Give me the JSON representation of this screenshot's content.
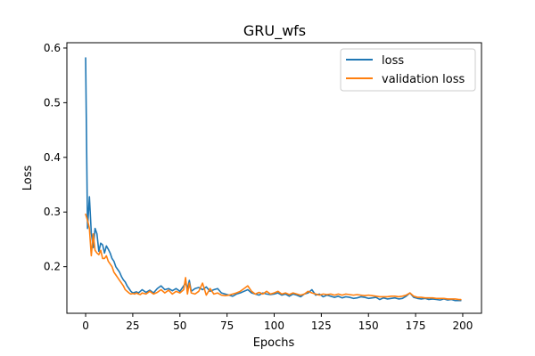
{
  "chart_data": {
    "type": "line",
    "title": "GRU_wfs",
    "xlabel": "Epochs",
    "ylabel": "Loss",
    "xlim": [
      -9.95,
      209.95
    ],
    "ylim": [
      0.1148,
      0.6097
    ],
    "xticks": [
      0,
      25,
      50,
      75,
      100,
      125,
      150,
      175,
      200
    ],
    "yticks": [
      0.2,
      0.3,
      0.4,
      0.5,
      0.6
    ],
    "legend": "upper right",
    "grid": false,
    "series": [
      {
        "name": "loss",
        "color": "#1f77b4",
        "x": [
          0,
          1,
          2,
          3,
          4,
          5,
          6,
          7,
          8,
          9,
          10,
          11,
          12,
          13,
          14,
          15,
          16,
          17,
          18,
          19,
          20,
          21,
          22,
          23,
          24,
          25,
          26,
          27,
          28,
          29,
          30,
          32,
          34,
          36,
          38,
          40,
          42,
          44,
          46,
          48,
          50,
          52,
          53,
          54,
          55,
          56,
          58,
          60,
          62,
          64,
          66,
          68,
          70,
          72,
          74,
          76,
          78,
          80,
          82,
          84,
          86,
          88,
          90,
          92,
          94,
          96,
          98,
          100,
          102,
          104,
          106,
          108,
          110,
          112,
          114,
          116,
          118,
          120,
          122,
          124,
          126,
          128,
          130,
          132,
          134,
          136,
          138,
          140,
          142,
          144,
          146,
          148,
          150,
          152,
          154,
          156,
          158,
          160,
          162,
          164,
          166,
          168,
          170,
          172,
          174,
          176,
          178,
          180,
          182,
          184,
          186,
          188,
          190,
          192,
          194,
          196,
          198,
          199
        ],
        "values": [
          0.582,
          0.27,
          0.328,
          0.262,
          0.235,
          0.27,
          0.26,
          0.228,
          0.243,
          0.24,
          0.225,
          0.238,
          0.232,
          0.225,
          0.215,
          0.21,
          0.2,
          0.195,
          0.19,
          0.182,
          0.176,
          0.172,
          0.165,
          0.16,
          0.155,
          0.152,
          0.153,
          0.154,
          0.152,
          0.155,
          0.158,
          0.153,
          0.157,
          0.152,
          0.16,
          0.165,
          0.158,
          0.16,
          0.156,
          0.16,
          0.155,
          0.165,
          0.17,
          0.16,
          0.175,
          0.155,
          0.16,
          0.162,
          0.158,
          0.163,
          0.155,
          0.158,
          0.16,
          0.152,
          0.15,
          0.148,
          0.146,
          0.15,
          0.152,
          0.155,
          0.158,
          0.152,
          0.15,
          0.148,
          0.152,
          0.15,
          0.149,
          0.15,
          0.152,
          0.148,
          0.15,
          0.146,
          0.15,
          0.148,
          0.145,
          0.15,
          0.152,
          0.158,
          0.148,
          0.15,
          0.145,
          0.148,
          0.146,
          0.144,
          0.146,
          0.143,
          0.145,
          0.144,
          0.142,
          0.143,
          0.145,
          0.144,
          0.142,
          0.143,
          0.144,
          0.14,
          0.143,
          0.141,
          0.142,
          0.143,
          0.141,
          0.142,
          0.146,
          0.152,
          0.144,
          0.142,
          0.141,
          0.142,
          0.14,
          0.141,
          0.14,
          0.139,
          0.141,
          0.139,
          0.14,
          0.138,
          0.138,
          0.138
        ]
      },
      {
        "name": "validation loss",
        "color": "#ff7f0e",
        "x": [
          0,
          1,
          2,
          3,
          4,
          5,
          6,
          7,
          8,
          9,
          10,
          11,
          12,
          13,
          14,
          15,
          16,
          17,
          18,
          19,
          20,
          21,
          22,
          23,
          24,
          25,
          26,
          27,
          28,
          29,
          30,
          32,
          34,
          36,
          38,
          40,
          42,
          44,
          46,
          48,
          50,
          52,
          53,
          54,
          55,
          56,
          58,
          60,
          62,
          64,
          66,
          68,
          70,
          72,
          74,
          76,
          78,
          80,
          82,
          84,
          86,
          88,
          90,
          92,
          94,
          96,
          98,
          100,
          102,
          104,
          106,
          108,
          110,
          112,
          114,
          116,
          118,
          120,
          122,
          124,
          126,
          128,
          130,
          132,
          134,
          136,
          138,
          140,
          142,
          144,
          146,
          148,
          150,
          152,
          154,
          156,
          158,
          160,
          162,
          164,
          166,
          168,
          170,
          172,
          174,
          176,
          178,
          180,
          182,
          184,
          186,
          188,
          190,
          192,
          194,
          196,
          198,
          199
        ],
        "values": [
          0.296,
          0.285,
          0.27,
          0.22,
          0.26,
          0.23,
          0.225,
          0.222,
          0.23,
          0.215,
          0.215,
          0.22,
          0.21,
          0.205,
          0.2,
          0.19,
          0.185,
          0.18,
          0.175,
          0.17,
          0.165,
          0.158,
          0.155,
          0.152,
          0.15,
          0.151,
          0.15,
          0.152,
          0.15,
          0.149,
          0.152,
          0.15,
          0.155,
          0.15,
          0.153,
          0.158,
          0.152,
          0.157,
          0.15,
          0.155,
          0.152,
          0.158,
          0.18,
          0.15,
          0.17,
          0.152,
          0.15,
          0.155,
          0.17,
          0.148,
          0.16,
          0.15,
          0.152,
          0.148,
          0.147,
          0.148,
          0.15,
          0.152,
          0.155,
          0.16,
          0.165,
          0.155,
          0.15,
          0.153,
          0.15,
          0.155,
          0.15,
          0.152,
          0.155,
          0.15,
          0.152,
          0.149,
          0.152,
          0.15,
          0.148,
          0.15,
          0.155,
          0.152,
          0.15,
          0.148,
          0.15,
          0.149,
          0.15,
          0.148,
          0.15,
          0.148,
          0.15,
          0.149,
          0.148,
          0.149,
          0.148,
          0.147,
          0.148,
          0.147,
          0.146,
          0.145,
          0.145,
          0.145,
          0.146,
          0.146,
          0.145,
          0.146,
          0.148,
          0.152,
          0.146,
          0.144,
          0.144,
          0.143,
          0.143,
          0.143,
          0.142,
          0.142,
          0.142,
          0.141,
          0.141,
          0.141,
          0.14,
          0.14
        ]
      }
    ]
  }
}
